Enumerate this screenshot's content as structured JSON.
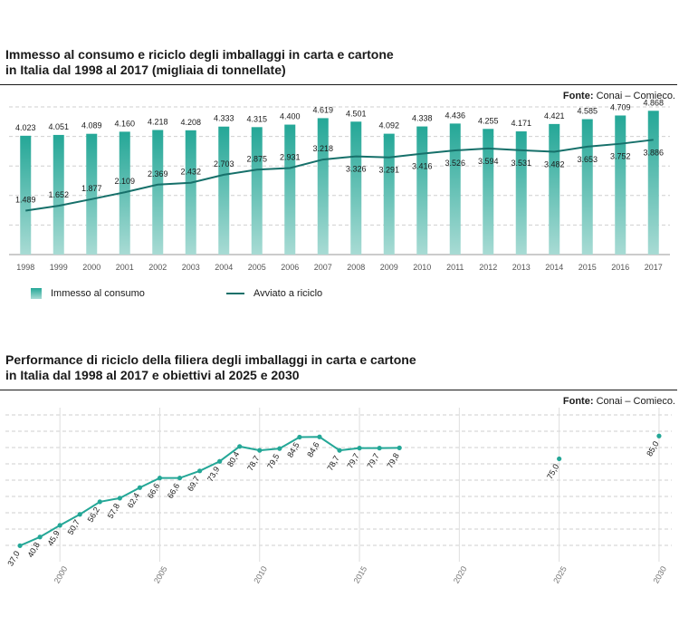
{
  "source_label": "Fonte:",
  "source_text": "Conai – Comieco.",
  "chart_data": [
    {
      "type": "bar",
      "title_lines": [
        "Immesso al consumo e riciclo degli imballaggi in carta e cartone",
        "in Italia dal 1998 al 2017 (migliaia di tonnellate)"
      ],
      "categories": [
        "1998",
        "1999",
        "2000",
        "2001",
        "2002",
        "2003",
        "2004",
        "2005",
        "2006",
        "2007",
        "2008",
        "2009",
        "2010",
        "2011",
        "2012",
        "2013",
        "2014",
        "2015",
        "2016",
        "2017"
      ],
      "series": [
        {
          "name": "Immesso al consumo",
          "type": "bar",
          "values": [
            4023,
            4051,
            4089,
            4160,
            4218,
            4208,
            4333,
            4315,
            4400,
            4619,
            4501,
            4092,
            4338,
            4436,
            4255,
            4171,
            4421,
            4585,
            4709,
            4868
          ],
          "labels": [
            "4.023",
            "4.051",
            "4.089",
            "4.160",
            "4.218",
            "4.208",
            "4.333",
            "4.315",
            "4.400",
            "4.619",
            "4.501",
            "4.092",
            "4.338",
            "4.436",
            "4.255",
            "4.171",
            "4.421",
            "4.585",
            "4.709",
            "4.868"
          ]
        },
        {
          "name": "Avviato a riciclo",
          "type": "line",
          "values": [
            1489,
            1652,
            1877,
            2109,
            2369,
            2432,
            2703,
            2875,
            2931,
            3218,
            3326,
            3291,
            3416,
            3526,
            3594,
            3531,
            3482,
            3653,
            3752,
            3886
          ],
          "labels": [
            "1.489",
            "1.652",
            "1.877",
            "2.109",
            "2.369",
            "2.432",
            "2.703",
            "2.875",
            "2.931",
            "3.218",
            "3.326",
            "3.291",
            "3.416",
            "3.526",
            "3.594",
            "3.531",
            "3.482",
            "3.653",
            "3.752",
            "3.886"
          ]
        }
      ],
      "ylim": [
        0,
        5000
      ],
      "grid": true,
      "legend_position": "bottom-left",
      "colors": {
        "bar_top": "#24a797",
        "bar_bottom": "#a8dbd4",
        "line": "#16706a",
        "grid": "#cfcfcf"
      }
    },
    {
      "type": "line",
      "title_lines": [
        "Performance di riciclo della filiera degli imballaggi in carta e cartone",
        "in Italia dal 1998 al 2017 e obiettivi al 2025 e 2030"
      ],
      "x": [
        1998,
        1999,
        2000,
        2001,
        2002,
        2003,
        2004,
        2005,
        2006,
        2007,
        2008,
        2009,
        2010,
        2011,
        2012,
        2013,
        2014,
        2015,
        2016,
        2017
      ],
      "values": [
        37.0,
        40.8,
        45.9,
        50.7,
        56.2,
        57.8,
        62.4,
        66.6,
        66.6,
        69.7,
        73.9,
        80.4,
        78.7,
        79.5,
        84.5,
        84.6,
        78.7,
        79.7,
        79.7,
        79.8
      ],
      "labels": [
        "37,0",
        "40,8",
        "45,9",
        "50,7",
        "56,2",
        "57,8",
        "62,4",
        "66,6",
        "66,6",
        "69,7",
        "73,9",
        "80,4",
        "78,7",
        "79,5",
        "84,5",
        "84,6",
        "78,7",
        "79,7",
        "79,7",
        "79,8"
      ],
      "targets": [
        {
          "x": 2025,
          "value": 75.0,
          "label": "75,0"
        },
        {
          "x": 2030,
          "value": 85.0,
          "label": "85,0"
        }
      ],
      "x_ticks": [
        "2000",
        "2005",
        "2010",
        "2015",
        "2020",
        "2025",
        "2030"
      ],
      "xlim": [
        1997,
        2031
      ],
      "ylim": [
        0,
        95
      ],
      "grid": true,
      "colors": {
        "line": "#24a797",
        "dot": "#24a797",
        "grid": "#cfcfcf"
      }
    }
  ]
}
